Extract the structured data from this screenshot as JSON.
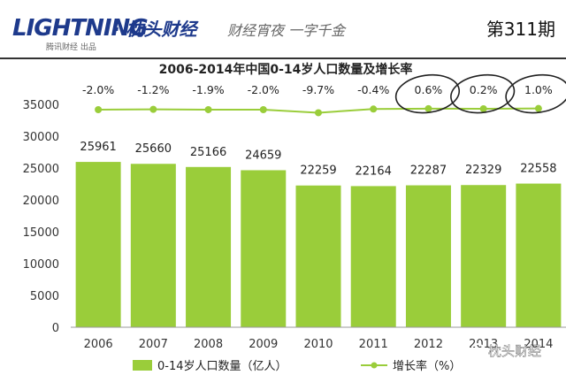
{
  "header": {
    "brand": "LIGHTNING",
    "brand_sub": "腾讯财经 出品",
    "column_name": "· 枕头财经",
    "slogan": "财经宵夜 一字千金",
    "issue": "第311期"
  },
  "watermark": "枕头财经",
  "colors": {
    "bar": "#9ACD3A",
    "line": "#9ACD3A",
    "header_blue": "#1E3A8C",
    "divider": "#333333"
  },
  "chart_data": {
    "type": "bar",
    "title": "2006-2014年中国0-14岁人口数量及增长率",
    "categories": [
      "2006",
      "2007",
      "2008",
      "2009",
      "2010",
      "2011",
      "2012",
      "2013",
      "2014"
    ],
    "series": [
      {
        "name": "0-14岁人口数量（亿人）",
        "type": "bar",
        "values": [
          25961,
          25660,
          25166,
          24659,
          22259,
          22164,
          22287,
          22329,
          22558
        ],
        "labels": [
          "25961",
          "25660",
          "25166",
          "24659",
          "22259",
          "22164",
          "22287",
          "22329",
          "22558"
        ]
      },
      {
        "name": "增长率（%）",
        "type": "line",
        "values": [
          -2.0,
          -1.2,
          -1.9,
          -2.0,
          -9.7,
          -0.4,
          0.6,
          0.2,
          1.0
        ],
        "labels": [
          "-2.0%",
          "-1.2%",
          "-1.9%",
          "-2.0%",
          "-9.7%",
          "-0.4%",
          "0.6%",
          "0.2%",
          "1.0%"
        ],
        "circled": [
          6,
          7,
          8
        ]
      }
    ],
    "y_ticks": [
      "0",
      "5000",
      "10000",
      "15000",
      "20000",
      "25000",
      "30000",
      "35000"
    ],
    "ylim": [
      0,
      35000
    ],
    "grid": false,
    "legend": "bottom"
  }
}
